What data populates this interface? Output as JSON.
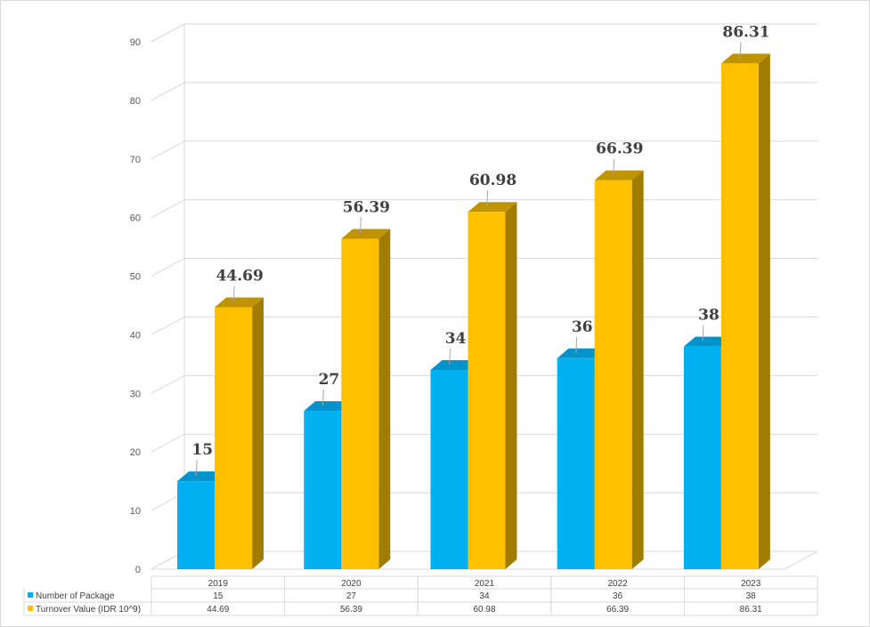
{
  "chart_data": {
    "type": "bar",
    "categories": [
      "2019",
      "2020",
      "2021",
      "2022",
      "2023"
    ],
    "series": [
      {
        "name": "Number of Package",
        "values": [
          15,
          27,
          34,
          36,
          38
        ],
        "color": "#00B0F0",
        "side_color": "#0086B8",
        "top_color": "#0093CC"
      },
      {
        "name": "Turnover Value (IDR 10^9)",
        "values": [
          44.69,
          56.39,
          60.98,
          66.39,
          86.31
        ],
        "color": "#FFC000",
        "side_color": "#A07C00",
        "top_color": "#C09400"
      }
    ],
    "value_labels": [
      [
        "15",
        "27",
        "34",
        "36",
        "38"
      ],
      [
        "44.69",
        "56.39",
        "60.98",
        "66.39",
        "86.31"
      ]
    ],
    "yticks": [
      "0",
      "10",
      "20",
      "30",
      "40",
      "50",
      "60",
      "70",
      "80",
      "90"
    ],
    "ylim": [
      0,
      90
    ],
    "grid": true,
    "legend": "data-table-below",
    "three_d": true
  }
}
